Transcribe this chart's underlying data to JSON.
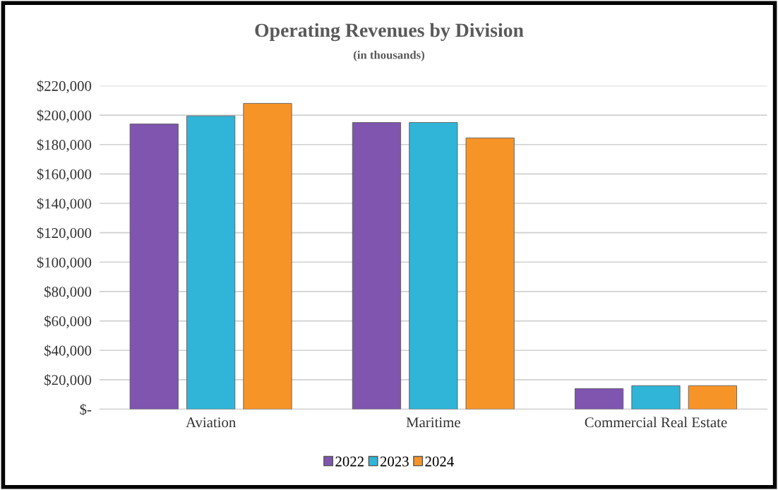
{
  "chart_data": {
    "type": "bar",
    "title": "Operating Revenues by Division",
    "subtitle": "(in thousands)",
    "categories": [
      "Aviation",
      "Maritime",
      "Commercial Real Estate"
    ],
    "series": [
      {
        "name": "2022",
        "color": "#7f55b0",
        "values": [
          194000,
          195000,
          14000
        ]
      },
      {
        "name": "2023",
        "color": "#30b4d8",
        "values": [
          199500,
          195000,
          16000
        ]
      },
      {
        "name": "2024",
        "color": "#f79428",
        "values": [
          208000,
          184500,
          16000
        ]
      }
    ],
    "ylim": [
      0,
      220000
    ],
    "yticks": [
      {
        "value": 0,
        "label": "$-"
      },
      {
        "value": 20000,
        "label": "$20,000"
      },
      {
        "value": 40000,
        "label": "$40,000"
      },
      {
        "value": 60000,
        "label": "$60,000"
      },
      {
        "value": 80000,
        "label": "$80,000"
      },
      {
        "value": 100000,
        "label": "$100,000"
      },
      {
        "value": 120000,
        "label": "$120,000"
      },
      {
        "value": 140000,
        "label": "$140,000"
      },
      {
        "value": 160000,
        "label": "$160,000"
      },
      {
        "value": 180000,
        "label": "$180,000"
      },
      {
        "value": 200000,
        "label": "$200,000"
      },
      {
        "value": 220000,
        "label": "$220,000"
      }
    ],
    "grid": "y",
    "legend": "bottom"
  }
}
